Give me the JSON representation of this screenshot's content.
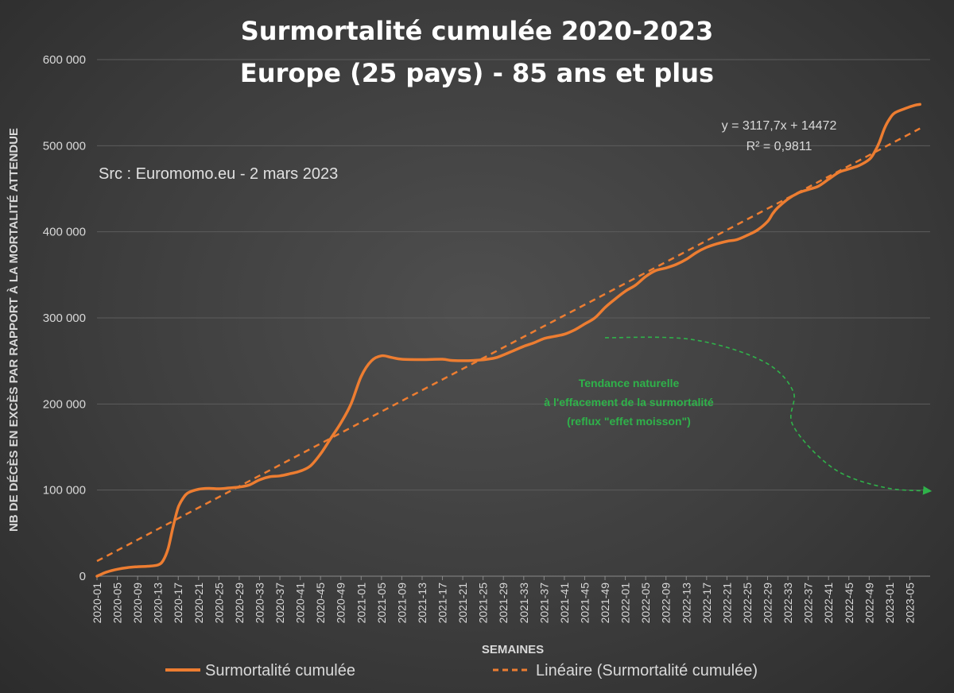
{
  "chart_data": {
    "type": "line",
    "title_lines": [
      "Surmortalité cumulée 2020-2023",
      "Europe (25 pays) - 85 ans et plus"
    ],
    "source": "Src : Euromomo.eu  - 2 mars 2023",
    "xlabel": "SEMAINES",
    "ylabel": "NB DE DÉCÈS EN EXCÈS PAR RAPPORT À LA MORTALITÉ ATTENDUE",
    "ylim": [
      0,
      600000
    ],
    "y_ticks": [
      0,
      100000,
      200000,
      300000,
      400000,
      500000,
      600000
    ],
    "y_tick_labels": [
      "0",
      "100 000",
      "200 000",
      "300 000",
      "400 000",
      "500 000",
      "600 000"
    ],
    "x_tick_labels": [
      "2020-01",
      "2020-05",
      "2020-09",
      "2020-13",
      "2020-17",
      "2020-21",
      "2020-25",
      "2020-29",
      "2020-33",
      "2020-37",
      "2020-41",
      "2020-45",
      "2020-49",
      "2021-01",
      "2021-05",
      "2021-09",
      "2021-13",
      "2021-17",
      "2021-21",
      "2021-25",
      "2021-29",
      "2021-33",
      "2021-37",
      "2021-41",
      "2021-45",
      "2021-49",
      "2022-01",
      "2022-05",
      "2022-09",
      "2022-13",
      "2022-17",
      "2022-21",
      "2022-25",
      "2022-29",
      "2022-33",
      "2022-37",
      "2022-41",
      "2022-45",
      "2022-49",
      "2023-01",
      "2023-05"
    ],
    "x_total_weeks": 165,
    "grid": true,
    "legend_position": "bottom",
    "series": [
      {
        "name": "Surmortalité cumulée",
        "color": "#ed7d31",
        "style": "solid",
        "points": [
          [
            1,
            0
          ],
          [
            3,
            5000
          ],
          [
            5,
            8000
          ],
          [
            7,
            10000
          ],
          [
            9,
            11000
          ],
          [
            11,
            11500
          ],
          [
            13,
            13000
          ],
          [
            14,
            18000
          ],
          [
            15,
            32000
          ],
          [
            16,
            58000
          ],
          [
            17,
            80000
          ],
          [
            18,
            91000
          ],
          [
            19,
            97000
          ],
          [
            21,
            101000
          ],
          [
            23,
            102000
          ],
          [
            25,
            101500
          ],
          [
            27,
            102500
          ],
          [
            29,
            103500
          ],
          [
            31,
            106000
          ],
          [
            33,
            112000
          ],
          [
            35,
            115500
          ],
          [
            37,
            116500
          ],
          [
            39,
            119000
          ],
          [
            41,
            122000
          ],
          [
            43,
            128000
          ],
          [
            45,
            142000
          ],
          [
            47,
            160000
          ],
          [
            49,
            178000
          ],
          [
            51,
            200000
          ],
          [
            53,
            232000
          ],
          [
            55,
            250000
          ],
          [
            57,
            256000
          ],
          [
            59,
            254000
          ],
          [
            61,
            252000
          ],
          [
            65,
            251500
          ],
          [
            69,
            252000
          ],
          [
            71,
            250500
          ],
          [
            75,
            250500
          ],
          [
            79,
            253000
          ],
          [
            81,
            257000
          ],
          [
            83,
            262000
          ],
          [
            85,
            267000
          ],
          [
            87,
            271000
          ],
          [
            89,
            276000
          ],
          [
            91,
            278500
          ],
          [
            93,
            281000
          ],
          [
            95,
            286000
          ],
          [
            97,
            293000
          ],
          [
            99,
            300000
          ],
          [
            101,
            312000
          ],
          [
            103,
            322000
          ],
          [
            105,
            331000
          ],
          [
            107,
            338000
          ],
          [
            109,
            348000
          ],
          [
            111,
            355000
          ],
          [
            113,
            358000
          ],
          [
            115,
            362000
          ],
          [
            117,
            368000
          ],
          [
            119,
            376000
          ],
          [
            121,
            382000
          ],
          [
            123,
            386000
          ],
          [
            125,
            389000
          ],
          [
            127,
            391000
          ],
          [
            129,
            396000
          ],
          [
            131,
            402000
          ],
          [
            133,
            412000
          ],
          [
            134,
            421000
          ],
          [
            135,
            428000
          ],
          [
            137,
            438000
          ],
          [
            139,
            445000
          ],
          [
            141,
            449000
          ],
          [
            143,
            453000
          ],
          [
            145,
            461000
          ],
          [
            147,
            469000
          ],
          [
            149,
            473000
          ],
          [
            151,
            477000
          ],
          [
            153,
            484000
          ],
          [
            154,
            492000
          ],
          [
            155,
            504000
          ],
          [
            156,
            520000
          ],
          [
            157,
            531000
          ],
          [
            158,
            538000
          ],
          [
            160,
            543000
          ],
          [
            162,
            547000
          ],
          [
            163,
            548000
          ]
        ]
      },
      {
        "name": "Linéaire (Surmortalité cumulée)",
        "color": "#ed7d31",
        "style": "dashed",
        "points": [
          [
            1,
            17500
          ],
          [
            163,
            520000
          ]
        ]
      }
    ],
    "trendline_equation": "y = 3117,7x + 14472",
    "trendline_r2": "R² = 0,9811",
    "annotation": {
      "lines": [
        "Tendance naturelle",
        "à l'effacement de la surmortalité",
        "(reflux \"effet moisson\")"
      ],
      "color": "#2fb24a",
      "arrow_points": [
        [
          101,
          277000
        ],
        [
          118,
          275000
        ],
        [
          132,
          250000
        ],
        [
          138,
          215000
        ],
        [
          138,
          175000
        ],
        [
          146,
          125000
        ],
        [
          156,
          103000
        ],
        [
          165,
          99000
        ]
      ]
    }
  }
}
